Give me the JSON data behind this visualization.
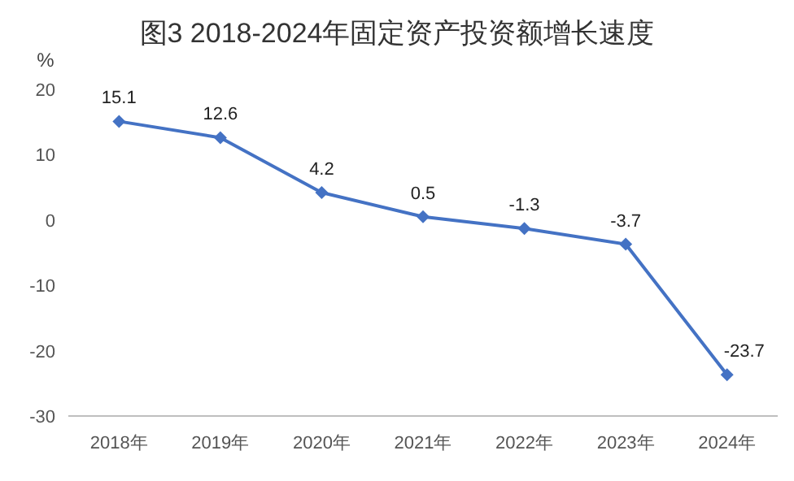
{
  "chart_data": {
    "type": "line",
    "title": "图3  2018-2024年固定资产投资额增长速度",
    "ylabel": "%",
    "categories": [
      "2018年",
      "2019年",
      "2020年",
      "2021年",
      "2022年",
      "2023年",
      "2024年"
    ],
    "series": [
      {
        "color": "#4472c4",
        "values": [
          15.1,
          12.6,
          4.2,
          0.5,
          -1.3,
          -3.7,
          -23.7
        ]
      }
    ],
    "ylim": [
      -30,
      20
    ],
    "yticks": [
      -30,
      -20,
      -10,
      0,
      10,
      20
    ],
    "data_labels": true,
    "marker": "diamond",
    "line_style": "solid",
    "grid": false
  }
}
